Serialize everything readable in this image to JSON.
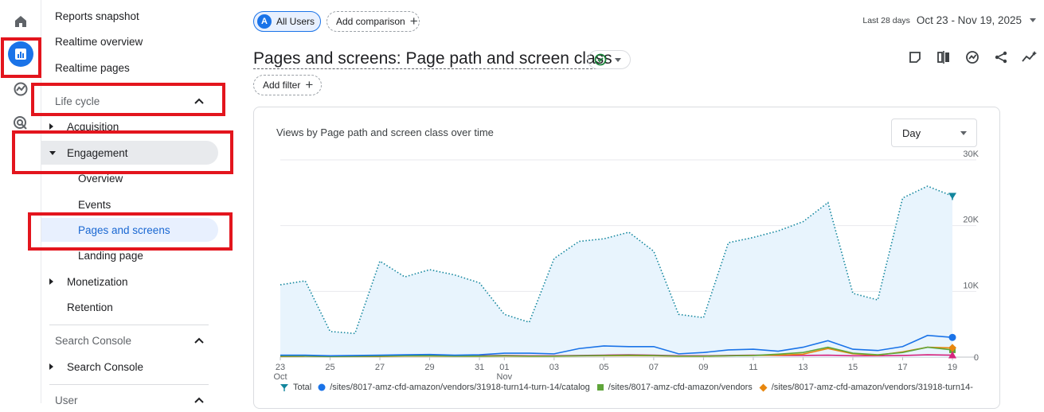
{
  "nav": {
    "items": [
      {
        "label": "Reports snapshot"
      },
      {
        "label": "Realtime overview"
      },
      {
        "label": "Realtime pages"
      },
      {
        "label": "Life cycle"
      },
      {
        "label": "Acquisition"
      },
      {
        "label": "Engagement"
      },
      {
        "label": "Overview"
      },
      {
        "label": "Events"
      },
      {
        "label": "Pages and screens"
      },
      {
        "label": "Landing page"
      },
      {
        "label": "Monetization"
      },
      {
        "label": "Retention"
      },
      {
        "label": "Search Console"
      },
      {
        "label": "Search Console"
      },
      {
        "label": "User"
      }
    ]
  },
  "header": {
    "segment_avatar": "A",
    "segment_label": "All Users",
    "add_comparison": "Add comparison",
    "date_label": "Last 28 days",
    "date_range": "Oct 23 - Nov 19, 2025",
    "title": "Pages and screens: Page path and screen class",
    "add_filter": "Add filter"
  },
  "card": {
    "title": "Views by Page path and screen class over time",
    "granularity": "Day"
  },
  "colors": {
    "accent": "#1a73e8",
    "highlight": "#e3151d",
    "total": "#12869d",
    "series1": "#1a73e8",
    "series2": "#5fa53a",
    "series3": "#e8870e",
    "series4": "#d6257e"
  },
  "chart_data": {
    "type": "line",
    "x": [
      "Oct 23",
      "Oct 24",
      "Oct 25",
      "Oct 26",
      "Oct 27",
      "Oct 28",
      "Oct 29",
      "Oct 30",
      "Oct 31",
      "Nov 01",
      "Nov 02",
      "Nov 03",
      "Nov 04",
      "Nov 05",
      "Nov 06",
      "Nov 07",
      "Nov 08",
      "Nov 09",
      "Nov 10",
      "Nov 11",
      "Nov 12",
      "Nov 13",
      "Nov 14",
      "Nov 15",
      "Nov 16",
      "Nov 17",
      "Nov 18",
      "Nov 19"
    ],
    "x_tick_labels": [
      "23",
      "25",
      "27",
      "29",
      "31",
      "01",
      "03",
      "05",
      "07",
      "09",
      "11",
      "13",
      "15",
      "17",
      "19"
    ],
    "x_tick_sub": {
      "23": "Oct",
      "01": "Nov"
    },
    "y_ticks": [
      "0",
      "10K",
      "20K",
      "30K"
    ],
    "ylim": [
      0,
      30000
    ],
    "series": [
      {
        "name": "Total",
        "values": [
          11000,
          11600,
          3900,
          3600,
          14600,
          12200,
          13300,
          12500,
          11300,
          6500,
          5300,
          15000,
          17600,
          18000,
          19000,
          16100,
          6500,
          6000,
          17400,
          18200,
          19200,
          20600,
          23500,
          9700,
          8700,
          24200,
          26000,
          24500
        ]
      },
      {
        "name": "/sites/8017-amz-cfd-amazon/vendors/31918-turn14-turn-14/catalog",
        "values": [
          300,
          300,
          200,
          250,
          300,
          350,
          400,
          300,
          350,
          600,
          600,
          500,
          1300,
          1700,
          1600,
          1600,
          500,
          700,
          1100,
          1200,
          900,
          1500,
          2500,
          1200,
          1000,
          1600,
          3300,
          3000
        ]
      },
      {
        "name": "/sites/8017-amz-cfd-amazon/vendors",
        "values": [
          150,
          150,
          100,
          120,
          150,
          200,
          200,
          150,
          150,
          200,
          150,
          150,
          200,
          250,
          300,
          250,
          150,
          150,
          200,
          250,
          450,
          700,
          1500,
          600,
          350,
          700,
          1500,
          1100
        ]
      },
      {
        "name": "/sites/8017-amz-cfd-amazon/vendors/31918-turn14-",
        "values": [
          100,
          120,
          80,
          90,
          100,
          150,
          150,
          120,
          120,
          160,
          130,
          120,
          180,
          200,
          220,
          200,
          120,
          120,
          200,
          250,
          300,
          450,
          1300,
          500,
          300,
          800,
          1500,
          1400
        ]
      },
      {
        "name": "",
        "values": [
          200,
          200,
          150,
          150,
          200,
          250,
          300,
          200,
          200,
          250,
          200,
          200,
          250,
          300,
          350,
          300,
          200,
          200,
          250,
          300,
          250,
          250,
          300,
          200,
          200,
          250,
          350,
          300
        ]
      }
    ],
    "legend_position": "bottom",
    "grid": true
  }
}
